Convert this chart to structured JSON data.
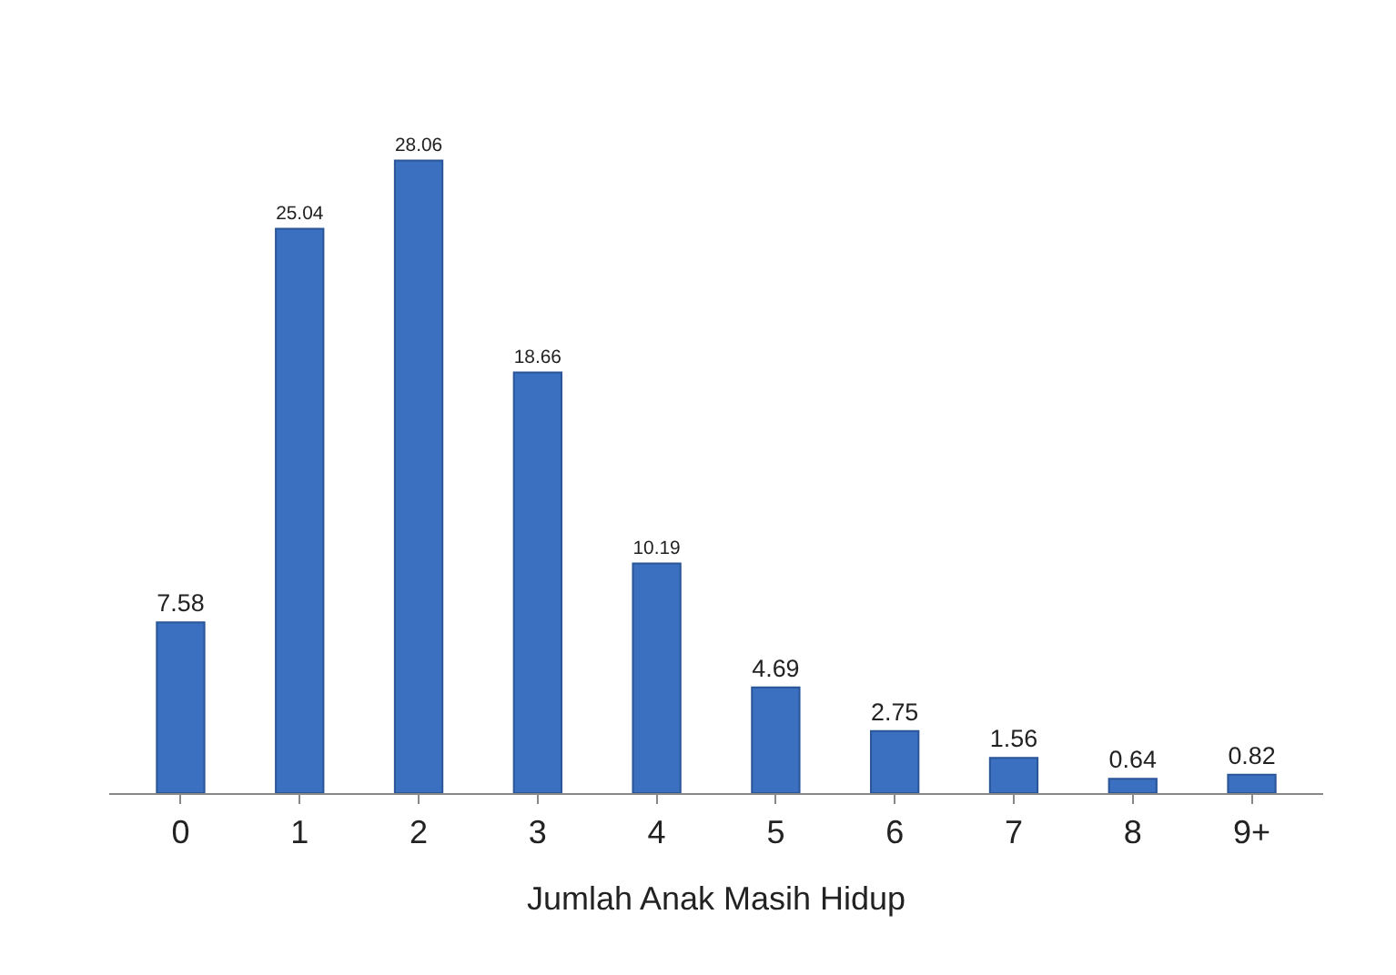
{
  "chart_data": {
    "type": "bar",
    "xlabel": "Jumlah Anak Masih Hidup",
    "categories": [
      "0",
      "1",
      "2",
      "3",
      "4",
      "5",
      "6",
      "7",
      "8",
      "9+"
    ],
    "values": [
      7.58,
      25.04,
      28.06,
      18.66,
      10.19,
      4.69,
      2.75,
      1.56,
      0.64,
      0.82
    ],
    "color": "#3b6fc0",
    "data_labels": true,
    "grid": false,
    "legend": false
  }
}
